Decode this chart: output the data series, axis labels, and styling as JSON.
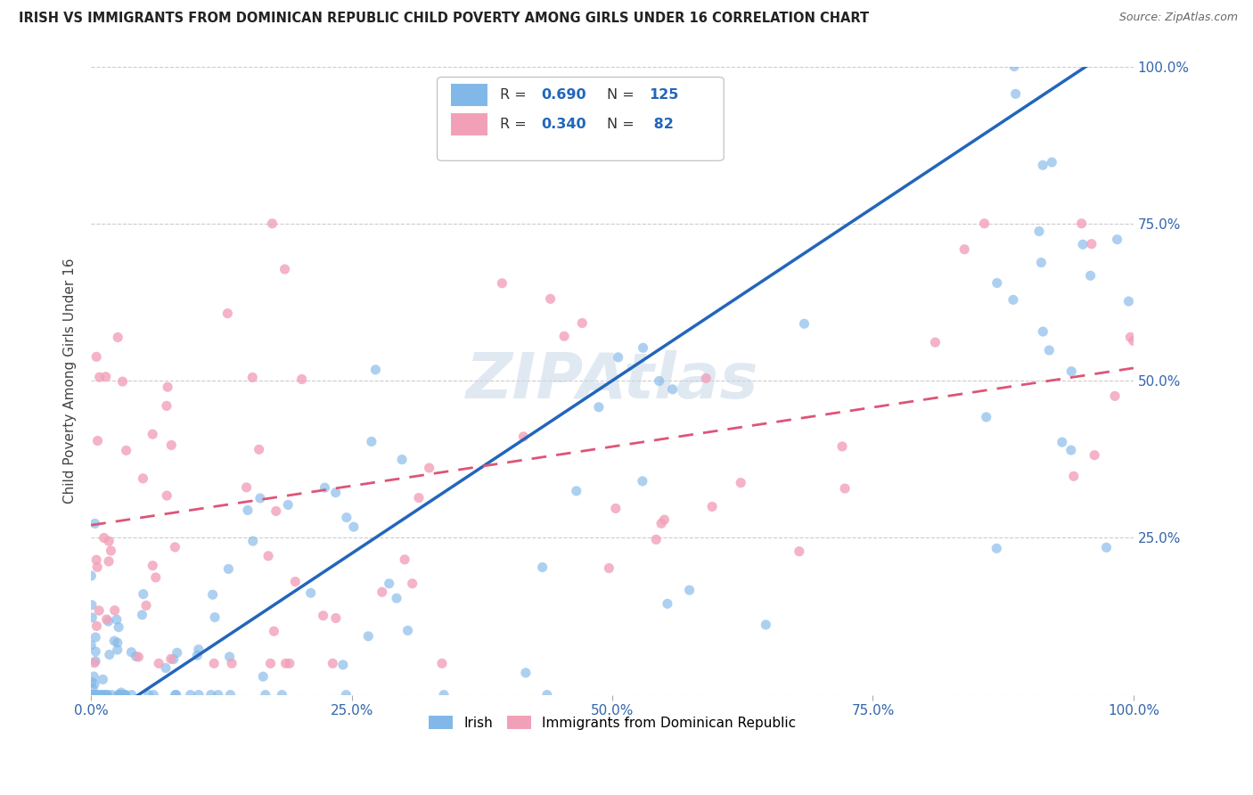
{
  "title": "IRISH VS IMMIGRANTS FROM DOMINICAN REPUBLIC CHILD POVERTY AMONG GIRLS UNDER 16 CORRELATION CHART",
  "source": "Source: ZipAtlas.com",
  "ylabel": "Child Poverty Among Girls Under 16",
  "irish_R": 0.69,
  "irish_N": 125,
  "dominican_R": 0.34,
  "dominican_N": 82,
  "irish_color": "#82B8E8",
  "dominican_color": "#F2A0B8",
  "irish_line_color": "#2266BB",
  "dominican_line_color": "#DD5577",
  "watermark_text": "ZIPAtlas",
  "watermark_color": "#C8D8E8",
  "xtick_labels": [
    "0.0%",
    "25.0%",
    "50.0%",
    "75.0%",
    "100.0%"
  ],
  "ytick_labels_right": [
    "100.0%",
    "75.0%",
    "50.0%",
    "25.0%",
    ""
  ],
  "legend_label_irish": "Irish",
  "legend_label_dom": "Immigrants from Dominican Republic"
}
